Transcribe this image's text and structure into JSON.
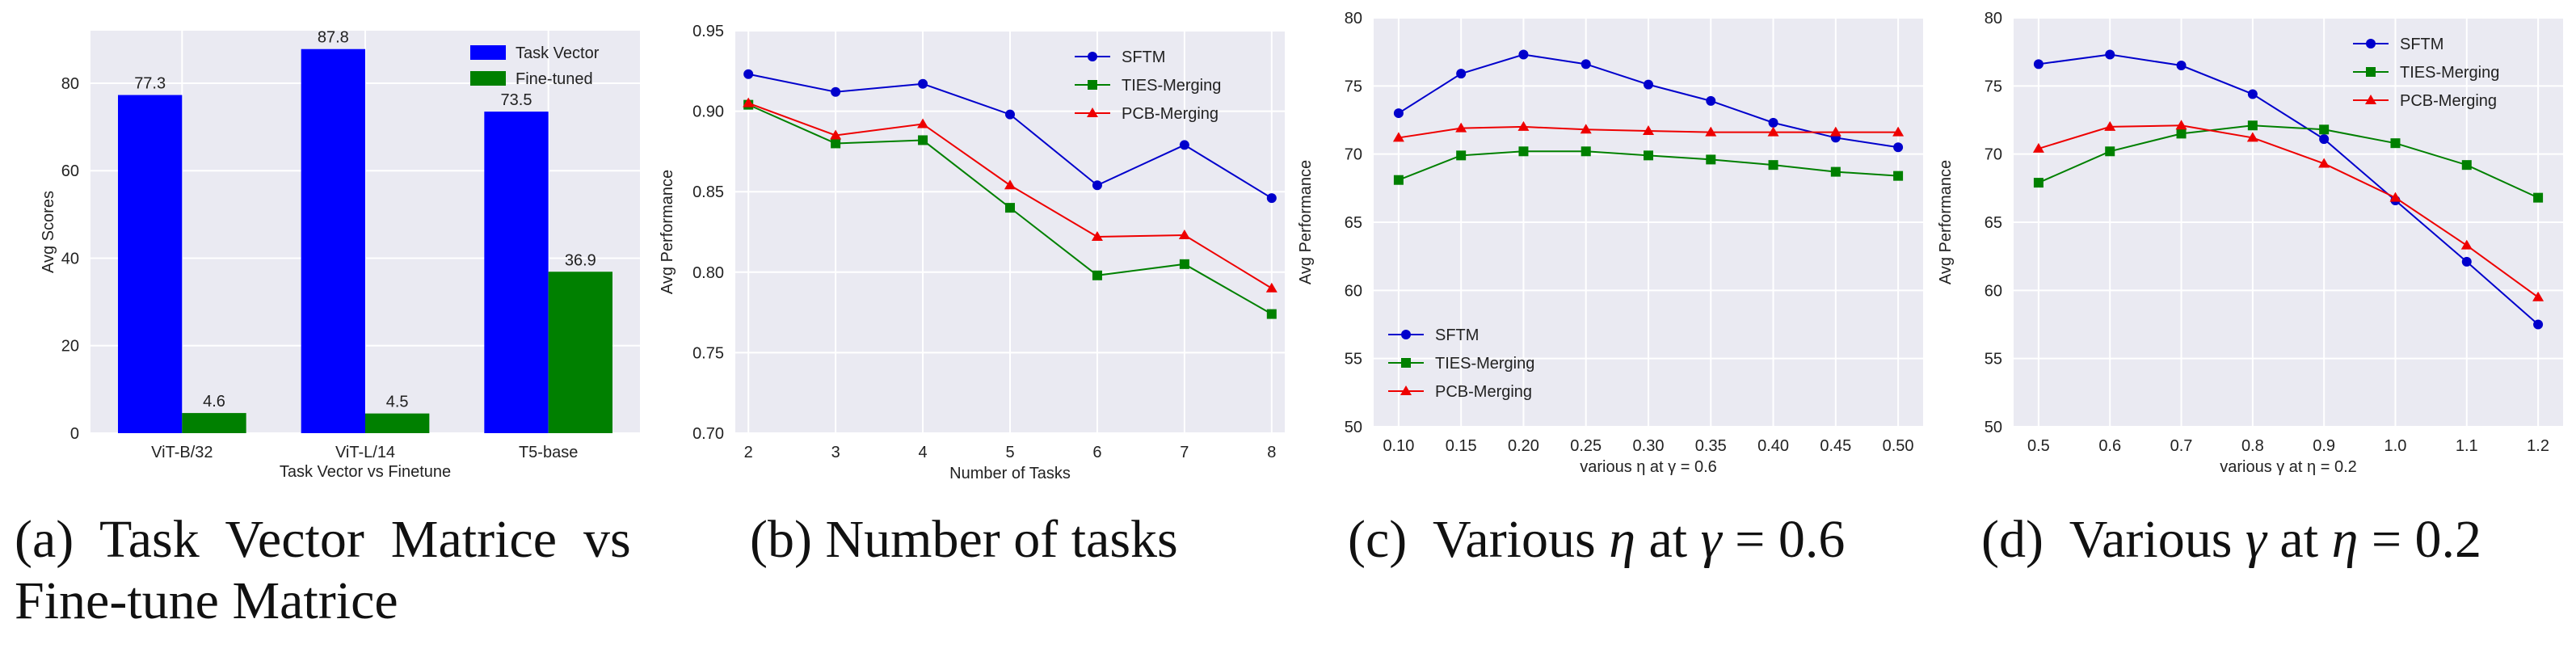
{
  "chart_data": [
    {
      "id": "a",
      "type": "bar",
      "caption": "(a) Task Vector Matrice vs Fine-tune Matrice",
      "caption_lines": [
        "(a)  Task  Vector  Matrice  vs",
        "Fine-tune Matrice"
      ],
      "title": "",
      "xlabel": "Task Vector vs Finetune",
      "ylabel": "Avg Scores",
      "ylim": [
        0,
        92
      ],
      "yticks": [
        0,
        20,
        40,
        60,
        80
      ],
      "categories": [
        "ViT-B/32",
        "ViT-L/14",
        "T5-base"
      ],
      "series": [
        {
          "name": "Task Vector",
          "color": "#0000ff",
          "values": [
            77.3,
            87.8,
            73.5
          ],
          "labels": [
            "77.3",
            "87.8",
            "73.5"
          ]
        },
        {
          "name": "Fine-tuned",
          "color": "#008000",
          "values": [
            4.6,
            4.5,
            36.9
          ],
          "labels": [
            "4.6",
            "4.5",
            "36.9"
          ]
        }
      ],
      "legend": "top-right",
      "grid": true
    },
    {
      "id": "b",
      "type": "line",
      "caption": "(b) Number of tasks",
      "title": "",
      "xlabel": "Number of Tasks",
      "ylabel": "Avg Performance",
      "x": [
        2,
        3,
        4,
        5,
        6,
        7,
        8
      ],
      "xticks": [
        "2",
        "3",
        "4",
        "5",
        "6",
        "7",
        "8"
      ],
      "xlim": [
        1.85,
        8.15
      ],
      "ylim": [
        0.7,
        0.95
      ],
      "yticks": [
        "0.70",
        "0.75",
        "0.80",
        "0.85",
        "0.90",
        "0.95"
      ],
      "series": [
        {
          "name": "SFTM",
          "color": "#0000cc",
          "marker": "circle",
          "values": [
            0.923,
            0.912,
            0.917,
            0.898,
            0.854,
            0.879,
            0.846
          ]
        },
        {
          "name": "TIES-Merging",
          "color": "#008000",
          "marker": "square",
          "values": [
            0.904,
            0.88,
            0.882,
            0.84,
            0.798,
            0.805,
            0.774
          ]
        },
        {
          "name": "PCB-Merging",
          "color": "#ee0000",
          "marker": "triangle",
          "values": [
            0.905,
            0.885,
            0.892,
            0.854,
            0.822,
            0.823,
            0.79
          ]
        }
      ],
      "legend": "top-right",
      "grid": true
    },
    {
      "id": "c",
      "type": "line",
      "caption": "(c) Various η at γ = 0.6",
      "caption_parts": [
        "(c)  Various ",
        "η",
        " at ",
        "γ",
        " = 0.6"
      ],
      "title": "",
      "xlabel": "various η at γ = 0.6",
      "ylabel": "Avg Performance",
      "x": [
        0.1,
        0.15,
        0.2,
        0.25,
        0.3,
        0.35,
        0.4,
        0.45,
        0.5
      ],
      "xticks": [
        "0.10",
        "0.15",
        "0.20",
        "0.25",
        "0.30",
        "0.35",
        "0.40",
        "0.45",
        "0.50"
      ],
      "xlim": [
        0.08,
        0.52
      ],
      "ylim": [
        50,
        80
      ],
      "yticks": [
        "50",
        "55",
        "60",
        "65",
        "70",
        "75",
        "80"
      ],
      "series": [
        {
          "name": "SFTM",
          "color": "#0000cc",
          "marker": "circle",
          "values": [
            73.0,
            75.9,
            77.3,
            76.6,
            75.1,
            73.9,
            72.3,
            71.2,
            70.5
          ]
        },
        {
          "name": "TIES-Merging",
          "color": "#008000",
          "marker": "square",
          "values": [
            68.1,
            69.9,
            70.2,
            70.2,
            69.9,
            69.6,
            69.2,
            68.7,
            68.4
          ]
        },
        {
          "name": "PCB-Merging",
          "color": "#ee0000",
          "marker": "triangle",
          "values": [
            71.2,
            71.9,
            72.0,
            71.8,
            71.7,
            71.6,
            71.6,
            71.6,
            71.6
          ]
        }
      ],
      "legend": "bottom-left",
      "grid": true
    },
    {
      "id": "d",
      "type": "line",
      "caption": "(d) Various γ at η = 0.2",
      "caption_parts": [
        "(d)  Various ",
        "γ",
        " at ",
        "η",
        " = 0.2"
      ],
      "title": "",
      "xlabel": "various γ at η = 0.2",
      "ylabel": "Avg Performance",
      "x": [
        0.5,
        0.6,
        0.7,
        0.8,
        0.9,
        1.0,
        1.1,
        1.2
      ],
      "xticks": [
        "0.5",
        "0.6",
        "0.7",
        "0.8",
        "0.9",
        "1.0",
        "1.1",
        "1.2"
      ],
      "xlim": [
        0.465,
        1.235
      ],
      "ylim": [
        50,
        80
      ],
      "yticks": [
        "50",
        "55",
        "60",
        "65",
        "70",
        "75",
        "80"
      ],
      "series": [
        {
          "name": "SFTM",
          "color": "#0000cc",
          "marker": "circle",
          "values": [
            76.6,
            77.3,
            76.5,
            74.4,
            71.1,
            66.6,
            62.1,
            57.5
          ]
        },
        {
          "name": "TIES-Merging",
          "color": "#008000",
          "marker": "square",
          "values": [
            67.9,
            70.2,
            71.5,
            72.1,
            71.8,
            70.8,
            69.2,
            66.8
          ]
        },
        {
          "name": "PCB-Merging",
          "color": "#ee0000",
          "marker": "triangle",
          "values": [
            70.4,
            72.0,
            72.1,
            71.2,
            69.3,
            66.8,
            63.3,
            59.5
          ]
        }
      ],
      "legend": "top-right",
      "grid": true
    }
  ]
}
